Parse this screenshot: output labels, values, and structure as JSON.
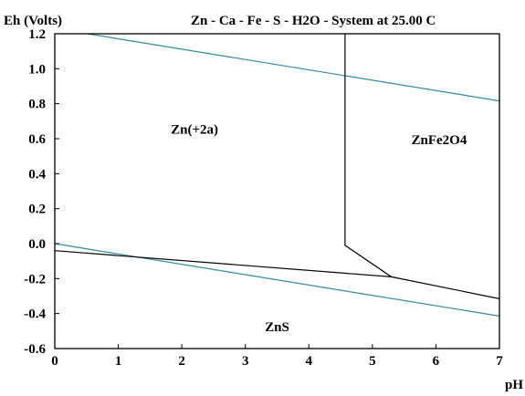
{
  "chart_data": {
    "type": "line",
    "title": "Zn - Ca - Fe - S - H2O - System at 25.00 C",
    "xlabel": "pH",
    "ylabel": "Eh (Volts)",
    "xlim": [
      0,
      7
    ],
    "ylim": [
      -0.6,
      1.2
    ],
    "x_ticks": [
      "0",
      "1",
      "2",
      "3",
      "4",
      "5",
      "6",
      "7"
    ],
    "y_ticks": [
      "-0.6",
      "-0.4",
      "-0.2",
      "0.0",
      "0.2",
      "0.4",
      "0.6",
      "0.8",
      "1.0",
      "1.2"
    ],
    "grid": false,
    "lines": [
      {
        "color": "#2e8b9a",
        "points": [
          [
            0,
            1.23
          ],
          [
            7,
            0.816
          ]
        ]
      },
      {
        "color": "#2e8b9a",
        "points": [
          [
            0,
            0.0
          ],
          [
            7,
            -0.414
          ]
        ]
      },
      {
        "color": "#000000",
        "points": [
          [
            4.57,
            1.2
          ],
          [
            4.57,
            -0.01
          ],
          [
            5.3,
            -0.19
          ],
          [
            7,
            -0.315
          ]
        ]
      },
      {
        "color": "#000000",
        "points": [
          [
            0,
            -0.04
          ],
          [
            5.3,
            -0.19
          ]
        ]
      }
    ],
    "regions": [
      {
        "label": "Zn(+2a)",
        "x": 2.2,
        "y": 0.63
      },
      {
        "label": "ZnFe2O4",
        "x": 6.05,
        "y": 0.57
      },
      {
        "label": "ZnS",
        "x": 3.5,
        "y": -0.5
      }
    ]
  }
}
